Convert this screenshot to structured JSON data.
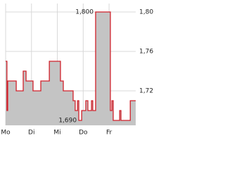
{
  "chart_data": {
    "type": "step",
    "x": [
      0,
      0.05,
      0.08,
      0.41,
      0.68,
      0.79,
      1.06,
      1.36,
      1.69,
      2.12,
      2.23,
      2.61,
      2.69,
      2.78,
      2.83,
      2.94,
      3.1,
      3.18,
      3.32,
      3.37,
      3.48,
      4.05,
      4.11,
      4.16,
      4.41,
      4.46,
      4.82,
      5.03
    ],
    "values": [
      1.75,
      1.7,
      1.73,
      1.72,
      1.74,
      1.73,
      1.72,
      1.73,
      1.75,
      1.73,
      1.72,
      1.71,
      1.7,
      1.71,
      1.69,
      1.7,
      1.71,
      1.7,
      1.71,
      1.7,
      1.8,
      1.7,
      1.71,
      1.69,
      1.7,
      1.69,
      1.71,
      1.71
    ],
    "color": "#d0202a",
    "fill": "#c4c4c4",
    "xlim": [
      0,
      5.03
    ],
    "xticks": [
      {
        "value": 0,
        "label": "Mo"
      },
      {
        "value": 1,
        "label": "Di"
      },
      {
        "value": 2,
        "label": "Mi"
      },
      {
        "value": 3,
        "label": "Do"
      },
      {
        "value": 4,
        "label": "Fr"
      }
    ],
    "ylim": [
      1.685,
      1.8086
    ],
    "yticks": [
      {
        "value": 1.72,
        "label": "1,72"
      },
      {
        "value": 1.76,
        "label": "1,76"
      },
      {
        "value": 1.8,
        "label": "1,80"
      }
    ],
    "annotations": [
      {
        "value": 1.8,
        "label": "1,800"
      },
      {
        "value": 1.69,
        "label": "1,690"
      }
    ],
    "grid": true
  }
}
